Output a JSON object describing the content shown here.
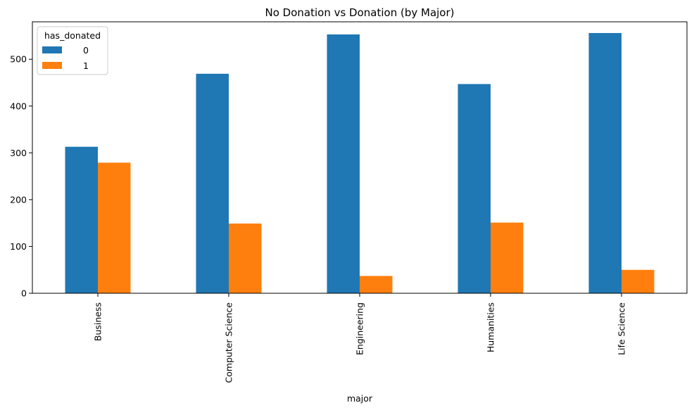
{
  "chart_data": {
    "type": "bar",
    "title": "No Donation vs Donation (by Major)",
    "xlabel": "major",
    "ylabel": "",
    "categories": [
      "Business",
      "Computer Science",
      "Engineering",
      "Humanities",
      "Life Science"
    ],
    "series": [
      {
        "name": "0",
        "color": "#1f77b4",
        "values": [
          313,
          469,
          553,
          447,
          556
        ]
      },
      {
        "name": "1",
        "color": "#ff7f0e",
        "values": [
          279,
          149,
          37,
          151,
          50
        ]
      }
    ],
    "ylim": [
      0,
      580
    ],
    "yticks": [
      0,
      100,
      200,
      300,
      400,
      500
    ],
    "legend": {
      "title": "has_donated",
      "placement": "top-left"
    },
    "grid": false
  }
}
